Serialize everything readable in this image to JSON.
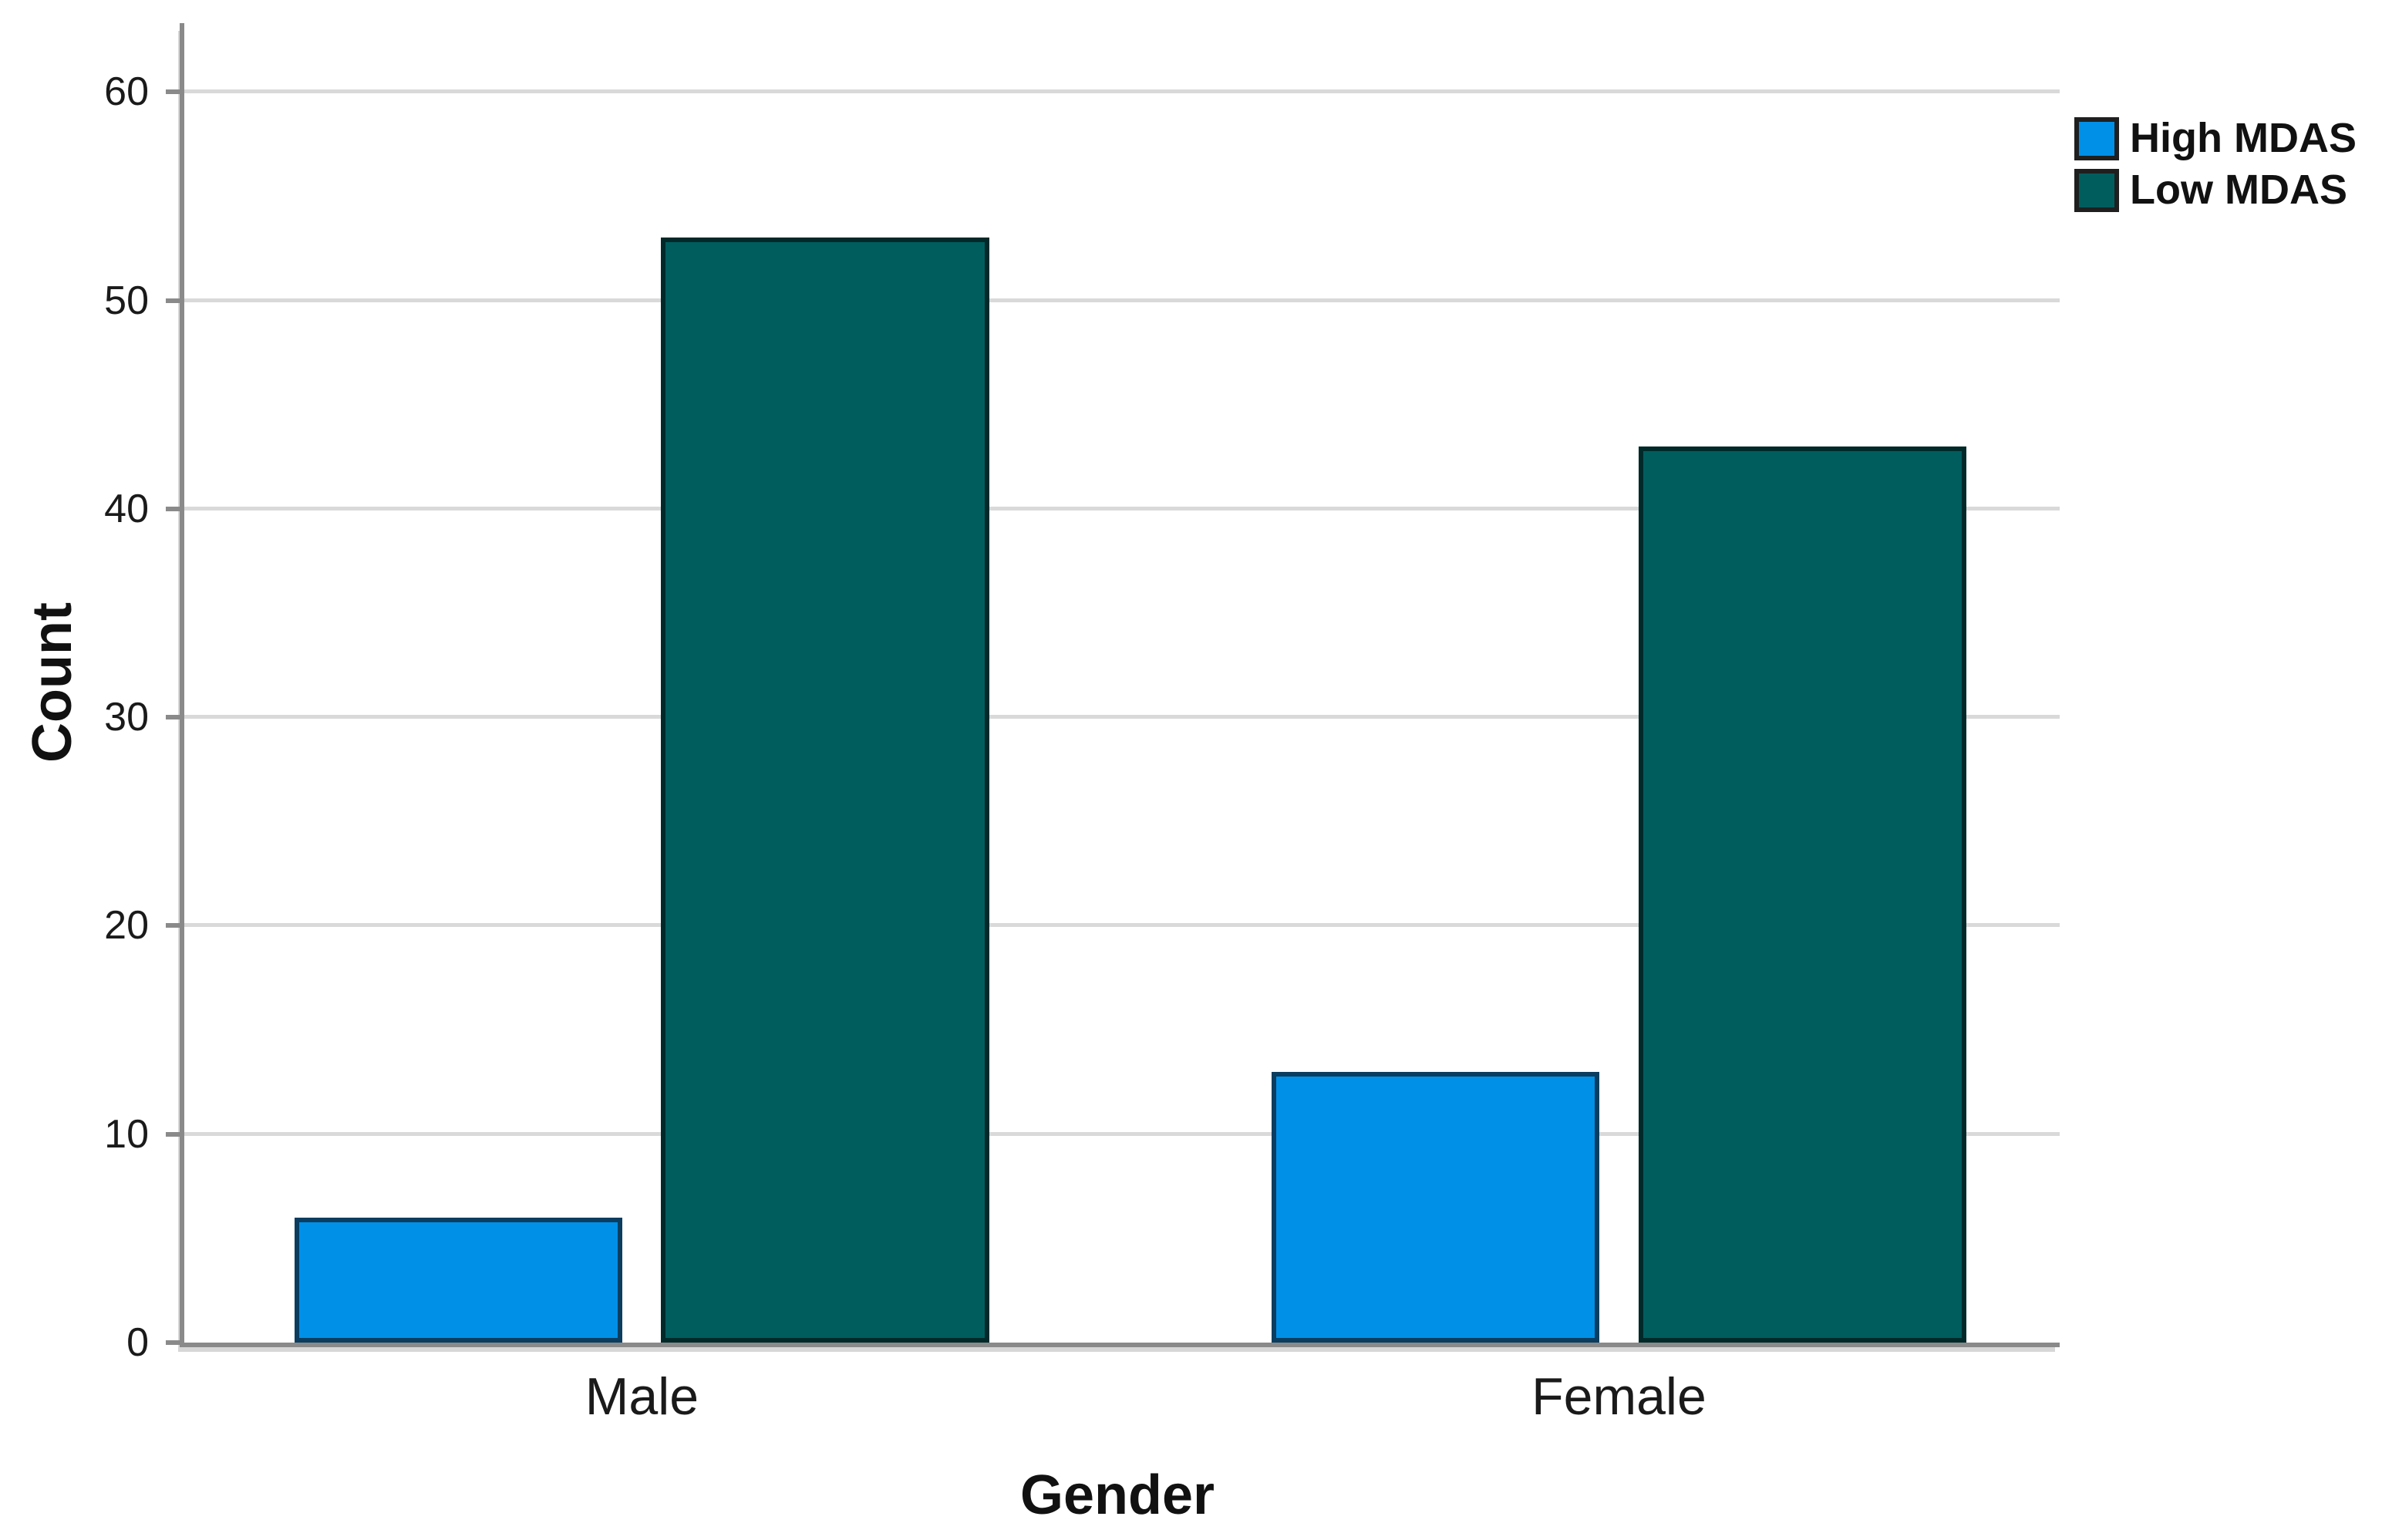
{
  "chart_data": {
    "type": "bar",
    "title": "",
    "categories": [
      "Male",
      "Female"
    ],
    "series": [
      {
        "name": "High MDAS",
        "color": "#0090e8",
        "border_color": "#0a3d5f",
        "values": [
          6,
          13
        ]
      },
      {
        "name": "Low MDAS",
        "color": "#005d5e",
        "border_color": "#01292a",
        "values": [
          53,
          43
        ]
      }
    ],
    "xlabel": "Gender",
    "ylabel": "Count",
    "ylim": [
      0,
      63.3
    ],
    "yticks": [
      0,
      10,
      20,
      30,
      40,
      50,
      60
    ],
    "grid": "horizontal",
    "legend_position": "top-right",
    "colors": {
      "axis": "#8a8a8a",
      "gridline": "#d9d9d9",
      "text": "#111111"
    }
  }
}
